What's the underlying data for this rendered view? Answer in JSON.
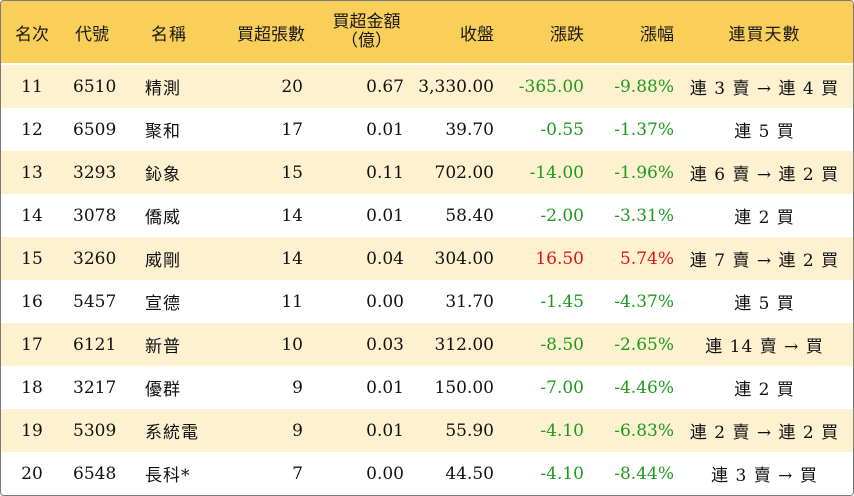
{
  "headers": {
    "rank": "名次",
    "code": "代號",
    "name": "名稱",
    "qty": "買超張數",
    "amount_line1": "買超金額",
    "amount_line2": "（億）",
    "close": "收盤",
    "change": "漲跌",
    "pct": "漲幅",
    "days": "連買天數"
  },
  "colors": {
    "header_bg": "#f9cf5a",
    "stripe_bg": "#fdf1d0",
    "up": "#e01414",
    "down": "#1f9a1f"
  },
  "rows": [
    {
      "rank": "11",
      "code": "6510",
      "name": "精測",
      "qty": "20",
      "amount": "0.67",
      "close": "3,330.00",
      "change": "-365.00",
      "pct": "-9.88%",
      "days": "連 3 賣 → 連 4 買",
      "dir": "down"
    },
    {
      "rank": "12",
      "code": "6509",
      "name": "聚和",
      "qty": "17",
      "amount": "0.01",
      "close": "39.70",
      "change": "-0.55",
      "pct": "-1.37%",
      "days": "連 5 買",
      "dir": "down"
    },
    {
      "rank": "13",
      "code": "3293",
      "name": "鈊象",
      "qty": "15",
      "amount": "0.11",
      "close": "702.00",
      "change": "-14.00",
      "pct": "-1.96%",
      "days": "連 6 賣 → 連 2 買",
      "dir": "down"
    },
    {
      "rank": "14",
      "code": "3078",
      "name": "僑威",
      "qty": "14",
      "amount": "0.01",
      "close": "58.40",
      "change": "-2.00",
      "pct": "-3.31%",
      "days": "連 2 買",
      "dir": "down"
    },
    {
      "rank": "15",
      "code": "3260",
      "name": "威剛",
      "qty": "14",
      "amount": "0.04",
      "close": "304.00",
      "change": "16.50",
      "pct": "5.74%",
      "days": "連 7 賣 → 連 2 買",
      "dir": "up"
    },
    {
      "rank": "16",
      "code": "5457",
      "name": "宣德",
      "qty": "11",
      "amount": "0.00",
      "close": "31.70",
      "change": "-1.45",
      "pct": "-4.37%",
      "days": "連 5 買",
      "dir": "down"
    },
    {
      "rank": "17",
      "code": "6121",
      "name": "新普",
      "qty": "10",
      "amount": "0.03",
      "close": "312.00",
      "change": "-8.50",
      "pct": "-2.65%",
      "days": "連 14 賣 → 買",
      "dir": "down"
    },
    {
      "rank": "18",
      "code": "3217",
      "name": "優群",
      "qty": "9",
      "amount": "0.01",
      "close": "150.00",
      "change": "-7.00",
      "pct": "-4.46%",
      "days": "連 2 買",
      "dir": "down"
    },
    {
      "rank": "19",
      "code": "5309",
      "name": "系統電",
      "qty": "9",
      "amount": "0.01",
      "close": "55.90",
      "change": "-4.10",
      "pct": "-6.83%",
      "days": "連 2 賣 → 連 2 買",
      "dir": "down"
    },
    {
      "rank": "20",
      "code": "6548",
      "name": "長科*",
      "qty": "7",
      "amount": "0.00",
      "close": "44.50",
      "change": "-4.10",
      "pct": "-8.44%",
      "days": "連 3 賣 → 買",
      "dir": "down"
    }
  ]
}
